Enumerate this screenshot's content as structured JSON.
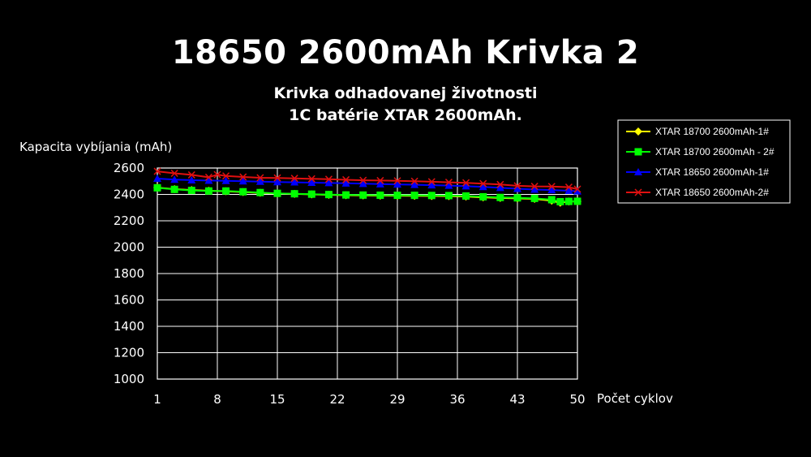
{
  "title": "18650 2600mAh Krivka 2",
  "subtitle_line1": "Krivka odhadovanej životnosti",
  "subtitle_line2": "1C batérie XTAR 2600mAh.",
  "chart_data": {
    "type": "line",
    "ylabel": "Kapacita vybíjania (mAh)",
    "xlabel": "Počet cyklov",
    "ylim": [
      1000,
      2600
    ],
    "xlim": [
      1,
      50
    ],
    "yticks": [
      2600,
      2400,
      2200,
      2000,
      1800,
      1600,
      1400,
      1200,
      1000
    ],
    "xticks": [
      1,
      8,
      15,
      22,
      29,
      36,
      43,
      50
    ],
    "grid": true,
    "legend_position": "top-right",
    "series": [
      {
        "name": "XTAR 18700 2600mAh-1#",
        "color": "#ffff00",
        "marker": "diamond",
        "x": [
          1,
          3,
          5,
          7,
          9,
          11,
          13,
          15,
          17,
          19,
          21,
          23,
          25,
          27,
          29,
          31,
          33,
          35,
          37,
          39,
          41,
          43,
          45,
          47,
          48,
          49,
          50
        ],
        "values": [
          2452,
          2440,
          2433,
          2428,
          2424,
          2418,
          2412,
          2407,
          2404,
          2400,
          2397,
          2394,
          2392,
          2391,
          2390,
          2389,
          2388,
          2387,
          2384,
          2378,
          2373,
          2370,
          2366,
          2352,
          2337,
          2346,
          2347
        ]
      },
      {
        "name": "XTAR 18700 2600mAh - 2#",
        "color": "#00ff00",
        "marker": "square",
        "x": [
          1,
          3,
          5,
          7,
          9,
          11,
          13,
          15,
          17,
          19,
          21,
          23,
          25,
          27,
          29,
          31,
          33,
          35,
          37,
          39,
          41,
          43,
          45,
          47,
          48,
          49,
          50
        ],
        "values": [
          2450,
          2438,
          2430,
          2426,
          2426,
          2420,
          2414,
          2408,
          2405,
          2402,
          2399,
          2396,
          2395,
          2394,
          2393,
          2393,
          2392,
          2391,
          2388,
          2382,
          2377,
          2374,
          2370,
          2360,
          2345,
          2347,
          2348
        ]
      },
      {
        "name": "XTAR 18650 2600mAh-1#",
        "color": "#0000ff",
        "marker": "triangle",
        "x": [
          1,
          3,
          5,
          7,
          9,
          11,
          13,
          15,
          17,
          19,
          21,
          23,
          25,
          27,
          29,
          31,
          33,
          35,
          37,
          39,
          41,
          43,
          45,
          47,
          49,
          50
        ],
        "values": [
          2520,
          2512,
          2508,
          2505,
          2503,
          2500,
          2497,
          2494,
          2492,
          2489,
          2487,
          2484,
          2481,
          2478,
          2476,
          2473,
          2470,
          2467,
          2462,
          2457,
          2450,
          2443,
          2437,
          2433,
          2428,
          2424
        ]
      },
      {
        "name": "XTAR 18650 2600mAh-2#",
        "color": "#e01010",
        "marker": "x",
        "x": [
          1,
          3,
          5,
          7,
          8,
          9,
          11,
          13,
          15,
          17,
          19,
          21,
          23,
          25,
          27,
          29,
          31,
          33,
          35,
          37,
          39,
          41,
          43,
          45,
          47,
          49,
          50
        ],
        "values": [
          2575,
          2560,
          2548,
          2530,
          2550,
          2540,
          2532,
          2526,
          2525,
          2522,
          2518,
          2515,
          2511,
          2507,
          2505,
          2503,
          2500,
          2496,
          2492,
          2488,
          2482,
          2475,
          2465,
          2461,
          2460,
          2455,
          2440
        ]
      }
    ]
  }
}
